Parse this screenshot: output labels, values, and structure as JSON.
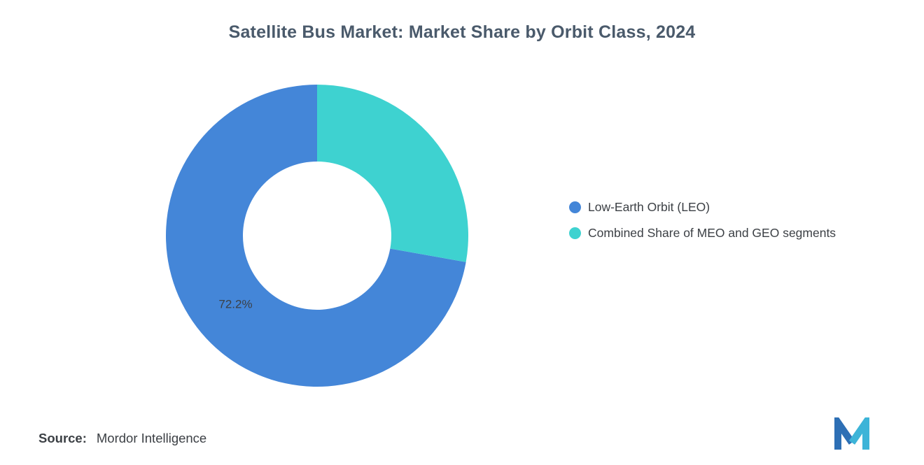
{
  "title": "Satellite Bus Market: Market Share by Orbit Class, 2024",
  "source": {
    "label": "Source:",
    "value": "Mordor Intelligence"
  },
  "logo": {
    "name": "mordor-intelligence-logo",
    "color_left": "#2d6fb5",
    "color_right": "#3db4d8"
  },
  "chart_data": {
    "type": "pie",
    "donut": true,
    "title": "Satellite Bus Market: Market Share by Orbit Class, 2024",
    "inner_radius": 106,
    "outer_radius": 216,
    "start_angle_deg": -90,
    "direction": "counterclockwise",
    "legend_position": "right",
    "slices": [
      {
        "name": "Low-Earth Orbit (LEO)",
        "value": 72.2,
        "color": "#4486d8",
        "label": "72.2%",
        "label_visible": true
      },
      {
        "name": "Combined Share of MEO and GEO segments",
        "value": 27.8,
        "color": "#3ed2d0",
        "label": "27.8%",
        "label_visible": false
      }
    ]
  }
}
